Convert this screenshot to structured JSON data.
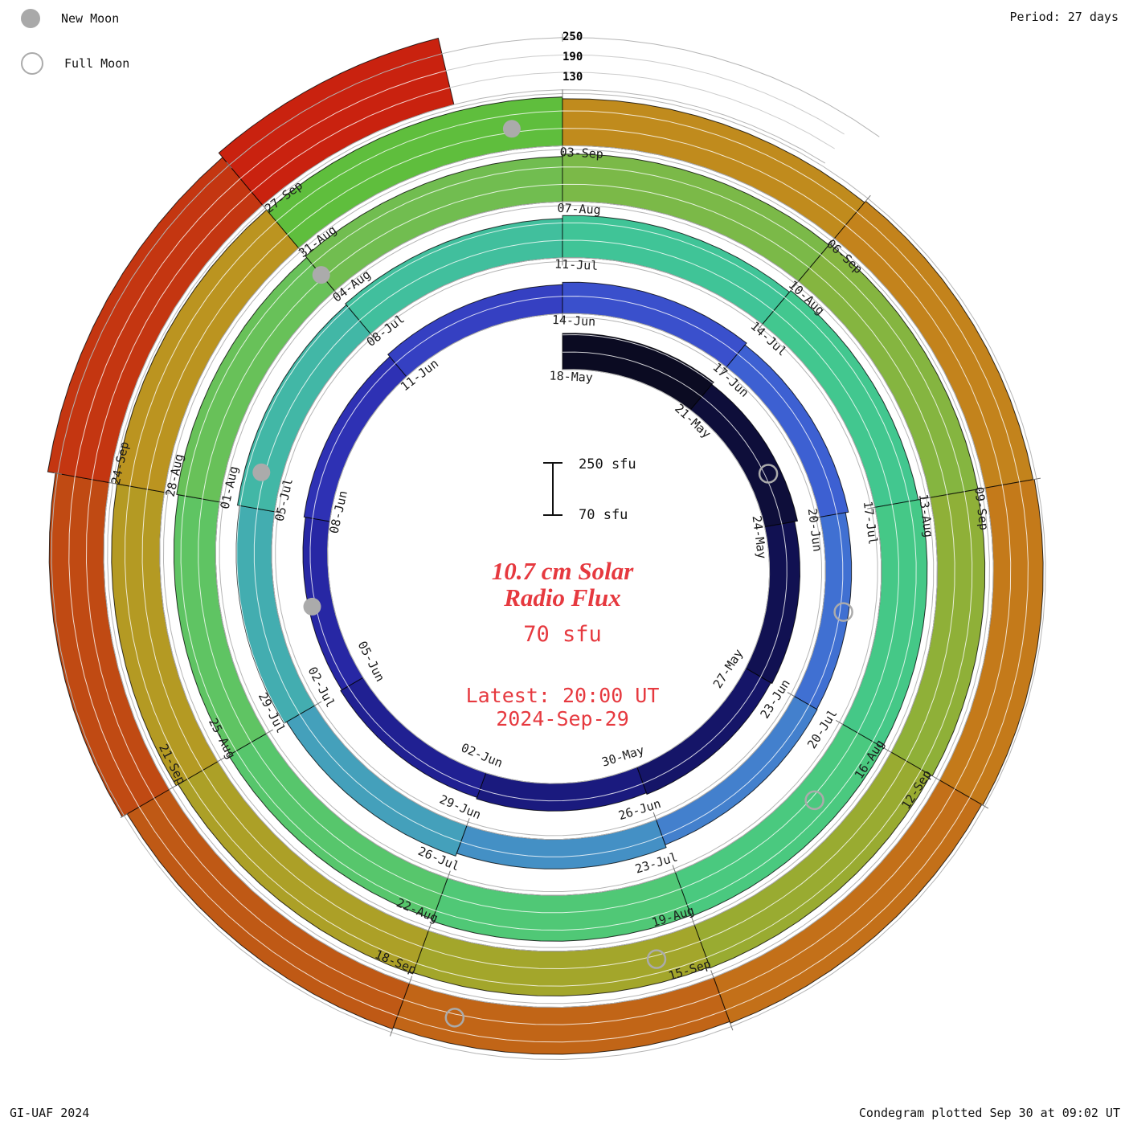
{
  "colors": {
    "accent_red": "#e6393f",
    "moon_gray": "#ababab",
    "grid_gray": "#b5b5b5",
    "label_dark": "#1b1b1b"
  },
  "header": {
    "period_label": "Period: 27 days"
  },
  "legend": {
    "new_moon_label": "New Moon",
    "full_moon_label": "Full Moon"
  },
  "radial_axis": {
    "labels": [
      "250",
      "190",
      "130"
    ]
  },
  "center": {
    "title_line1": "10.7 cm Solar",
    "title_line2": "Radio Flux",
    "base_flux_label": "70 sfu",
    "latest_line1": "Latest: 20:00 UT",
    "latest_line2": "2024-Sep-29"
  },
  "scalebar": {
    "top_label": "250 sfu",
    "bottom_label": "70 sfu"
  },
  "footer": {
    "left": "GI-UAF 2024",
    "right": "Condegram plotted Sep 30 at 09:02 UT"
  },
  "chart_data": {
    "type": "spiral-bar-condegram",
    "title": "10.7 cm Solar Radio Flux",
    "period_days": 27,
    "start_tick": "18-May",
    "end_date": "2024-Sep-29",
    "flux_base_sfu": 70,
    "flux_gridlines_sfu": [
      130,
      190,
      250
    ],
    "tick_interval_days": 3,
    "points": [
      {
        "date": "18-May",
        "flux": 195,
        "color": "#0b0b22"
      },
      {
        "date": "21-May",
        "flux": 185,
        "color": "#0e0e3a"
      },
      {
        "date": "24-May",
        "flux": 175,
        "color": "#111152"
      },
      {
        "date": "27-May",
        "flux": 170,
        "color": "#151568"
      },
      {
        "date": "30-May",
        "flux": 165,
        "color": "#1a1a7e"
      },
      {
        "date": "02-Jun",
        "flux": 160,
        "color": "#202092"
      },
      {
        "date": "05-Jun",
        "flux": 155,
        "color": "#2727a4"
      },
      {
        "date": "08-Jun",
        "flux": 160,
        "color": "#2e31b4"
      },
      {
        "date": "11-Jun",
        "flux": 170,
        "color": "#3540c2"
      },
      {
        "date": "14-Jun",
        "flux": 178,
        "color": "#3a50cc"
      },
      {
        "date": "17-Jun",
        "flux": 170,
        "color": "#3d60d2"
      },
      {
        "date": "20-Jun",
        "flux": 160,
        "color": "#4070d2"
      },
      {
        "date": "23-Jun",
        "flux": 162,
        "color": "#4380cd"
      },
      {
        "date": "26-Jun",
        "flux": 172,
        "color": "#4490c5"
      },
      {
        "date": "29-Jun",
        "flux": 182,
        "color": "#44a0bb"
      },
      {
        "date": "02-Jul",
        "flux": 192,
        "color": "#43adb0"
      },
      {
        "date": "05-Jul",
        "flux": 200,
        "color": "#42b7a6"
      },
      {
        "date": "08-Jul",
        "flux": 205,
        "color": "#41bf9d"
      },
      {
        "date": "11-Jul",
        "flux": 215,
        "color": "#40c497"
      },
      {
        "date": "14-Jul",
        "flux": 222,
        "color": "#42c78f"
      },
      {
        "date": "17-Jul",
        "flux": 228,
        "color": "#45c887"
      },
      {
        "date": "20-Jul",
        "flux": 232,
        "color": "#4ac97f"
      },
      {
        "date": "23-Jul",
        "flux": 228,
        "color": "#50c876"
      },
      {
        "date": "26-Jul",
        "flux": 220,
        "color": "#57c66c"
      },
      {
        "date": "29-Jul",
        "flux": 214,
        "color": "#5fc463"
      },
      {
        "date": "01-Aug",
        "flux": 220,
        "color": "#68c159"
      },
      {
        "date": "04-Aug",
        "flux": 226,
        "color": "#71bd50"
      },
      {
        "date": "07-Aug",
        "flux": 234,
        "color": "#7bb948"
      },
      {
        "date": "10-Aug",
        "flux": 238,
        "color": "#85b540"
      },
      {
        "date": "13-Aug",
        "flux": 234,
        "color": "#8fb038"
      },
      {
        "date": "16-Aug",
        "flux": 228,
        "color": "#99ab31"
      },
      {
        "date": "19-Aug",
        "flux": 224,
        "color": "#a3a62b"
      },
      {
        "date": "22-Aug",
        "flux": 228,
        "color": "#aca027"
      },
      {
        "date": "25-Aug",
        "flux": 236,
        "color": "#b49a23"
      },
      {
        "date": "28-Aug",
        "flux": 242,
        "color": "#bb9420"
      },
      {
        "date": "31-Aug",
        "flux": 238,
        "color": "#5fbe3d"
      },
      {
        "date": "03-Sep",
        "flux": 232,
        "color": "#c08b1d"
      },
      {
        "date": "06-Sep",
        "flux": 238,
        "color": "#c3831c"
      },
      {
        "date": "09-Sep",
        "flux": 242,
        "color": "#c47a1a"
      },
      {
        "date": "12-Sep",
        "flux": 238,
        "color": "#c37019"
      },
      {
        "date": "15-Sep",
        "flux": 232,
        "color": "#c16517"
      },
      {
        "date": "18-Sep",
        "flux": 238,
        "color": "#bf5915"
      },
      {
        "date": "21-Sep",
        "flux": 258,
        "color": "#c04a13"
      },
      {
        "date": "24-Sep",
        "flux": 285,
        "color": "#c43611"
      },
      {
        "date": "27-Sep",
        "flux": 305,
        "color": "#c9220f"
      }
    ],
    "new_moons": [
      {
        "date_approx": "06-Jun",
        "t_days": 19.5
      },
      {
        "date_approx": "05-Jul",
        "t_days": 48.5
      },
      {
        "date_approx": "04-Aug",
        "t_days": 78.0
      },
      {
        "date_approx": "03-Sep",
        "t_days": 107.5
      }
    ],
    "full_moons": [
      {
        "date_approx": "23-May",
        "t_days": 5.0
      },
      {
        "date_approx": "21-Jun",
        "t_days": 34.5
      },
      {
        "date_approx": "21-Jul",
        "t_days": 64.0
      },
      {
        "date_approx": "19-Aug",
        "t_days": 93.5
      },
      {
        "date_approx": "17-Sep",
        "t_days": 122.5
      }
    ]
  }
}
